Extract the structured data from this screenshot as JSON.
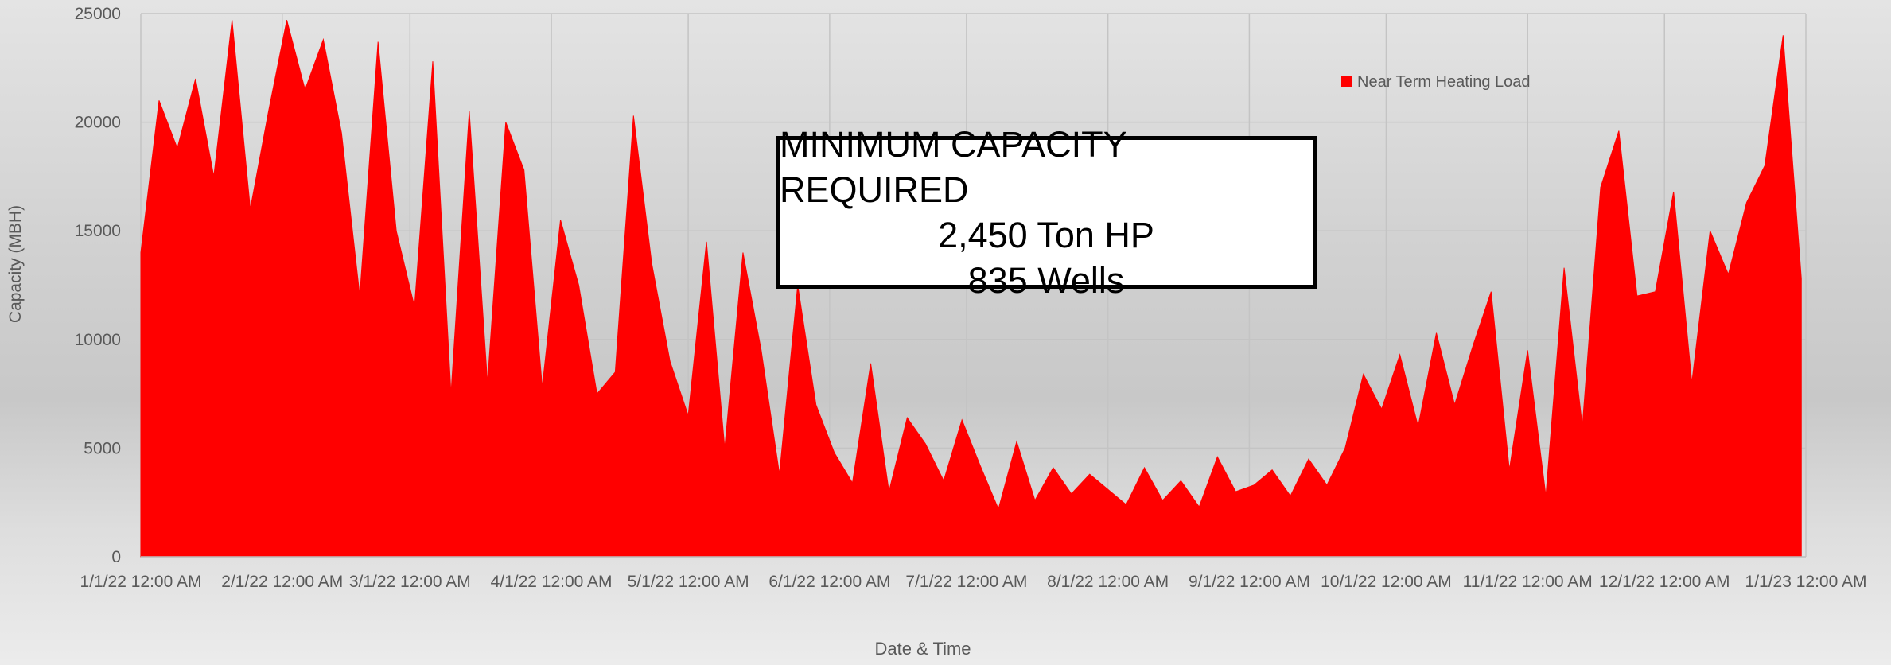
{
  "chart_data": {
    "type": "area",
    "y_label": "Capacity (MBH)",
    "x_label": "Date & Time",
    "annotation": [
      "MINIMUM CAPACITY REQUIRED",
      "2,450 Ton HP",
      "835 Wells"
    ],
    "legend": "top-right",
    "grid": true,
    "xlim": [
      "2022-01-01",
      "2023-01-01"
    ],
    "xticks": [
      {
        "value": "2022-01-01",
        "label": "1/1/22 12:00 AM"
      },
      {
        "value": "2022-02-01",
        "label": "2/1/22 12:00 AM"
      },
      {
        "value": "2022-03-01",
        "label": "3/1/22 12:00 AM"
      },
      {
        "value": "2022-04-01",
        "label": "4/1/22 12:00 AM"
      },
      {
        "value": "2022-05-01",
        "label": "5/1/22 12:00 AM"
      },
      {
        "value": "2022-06-01",
        "label": "6/1/22 12:00 AM"
      },
      {
        "value": "2022-07-01",
        "label": "7/1/22 12:00 AM"
      },
      {
        "value": "2022-08-01",
        "label": "8/1/22 12:00 AM"
      },
      {
        "value": "2022-09-01",
        "label": "9/1/22 12:00 AM"
      },
      {
        "value": "2022-10-01",
        "label": "10/1/22 12:00 AM"
      },
      {
        "value": "2022-11-01",
        "label": "11/1/22 12:00 AM"
      },
      {
        "value": "2022-12-01",
        "label": "12/1/22 12:00 AM"
      },
      {
        "value": "2023-01-01",
        "label": "1/1/23 12:00 AM"
      }
    ],
    "ylim": [
      0,
      25000
    ],
    "yticks": [
      0,
      5000,
      10000,
      15000,
      20000,
      25000
    ],
    "x": [
      "2022-01-01",
      "2022-01-05",
      "2022-01-09",
      "2022-01-13",
      "2022-01-17",
      "2022-01-21",
      "2022-01-25",
      "2022-01-29",
      "2022-02-02",
      "2022-02-06",
      "2022-02-10",
      "2022-02-14",
      "2022-02-18",
      "2022-02-22",
      "2022-02-26",
      "2022-03-02",
      "2022-03-06",
      "2022-03-10",
      "2022-03-14",
      "2022-03-18",
      "2022-03-22",
      "2022-03-26",
      "2022-03-30",
      "2022-04-03",
      "2022-04-07",
      "2022-04-11",
      "2022-04-15",
      "2022-04-19",
      "2022-04-23",
      "2022-04-27",
      "2022-05-01",
      "2022-05-05",
      "2022-05-09",
      "2022-05-13",
      "2022-05-17",
      "2022-05-21",
      "2022-05-25",
      "2022-05-29",
      "2022-06-02",
      "2022-06-06",
      "2022-06-10",
      "2022-06-14",
      "2022-06-18",
      "2022-06-22",
      "2022-06-26",
      "2022-06-30",
      "2022-07-04",
      "2022-07-08",
      "2022-07-12",
      "2022-07-16",
      "2022-07-20",
      "2022-07-24",
      "2022-07-28",
      "2022-08-01",
      "2022-08-05",
      "2022-08-09",
      "2022-08-13",
      "2022-08-17",
      "2022-08-21",
      "2022-08-25",
      "2022-08-29",
      "2022-09-02",
      "2022-09-06",
      "2022-09-10",
      "2022-09-14",
      "2022-09-18",
      "2022-09-22",
      "2022-09-26",
      "2022-09-30",
      "2022-10-04",
      "2022-10-08",
      "2022-10-12",
      "2022-10-16",
      "2022-10-20",
      "2022-10-24",
      "2022-10-28",
      "2022-11-01",
      "2022-11-05",
      "2022-11-09",
      "2022-11-13",
      "2022-11-17",
      "2022-11-21",
      "2022-11-25",
      "2022-11-29",
      "2022-12-03",
      "2022-12-07",
      "2022-12-11",
      "2022-12-15",
      "2022-12-19",
      "2022-12-23",
      "2022-12-27",
      "2022-12-31"
    ],
    "series": [
      {
        "name": "Near Term Heating Load",
        "color": "#ff0000",
        "values": [
          14000,
          21000,
          18800,
          22000,
          17500,
          24700,
          16000,
          20500,
          24700,
          21500,
          23800,
          19500,
          12000,
          23700,
          15000,
          11500,
          22800,
          7500,
          20500,
          8000,
          20000,
          17800,
          7800,
          15500,
          12500,
          7500,
          8500,
          20300,
          13500,
          9000,
          6500,
          14500,
          5000,
          14000,
          9500,
          3800,
          12500,
          7000,
          4800,
          3400,
          8900,
          3000,
          6400,
          5200,
          3500,
          6300,
          4200,
          2200,
          5300,
          2600,
          4100,
          2900,
          3800,
          3100,
          2400,
          4100,
          2600,
          3500,
          2300,
          4600,
          3000,
          3300,
          4000,
          2800,
          4500,
          3300,
          5000,
          8400,
          6800,
          9300,
          6000,
          10300,
          7000,
          9700,
          12200,
          4000,
          9500,
          2800,
          13300,
          6000,
          17000,
          19600,
          12000,
          12200,
          16800,
          8000,
          15000,
          13000,
          16300,
          18000,
          24000,
          12800
        ]
      }
    ]
  }
}
